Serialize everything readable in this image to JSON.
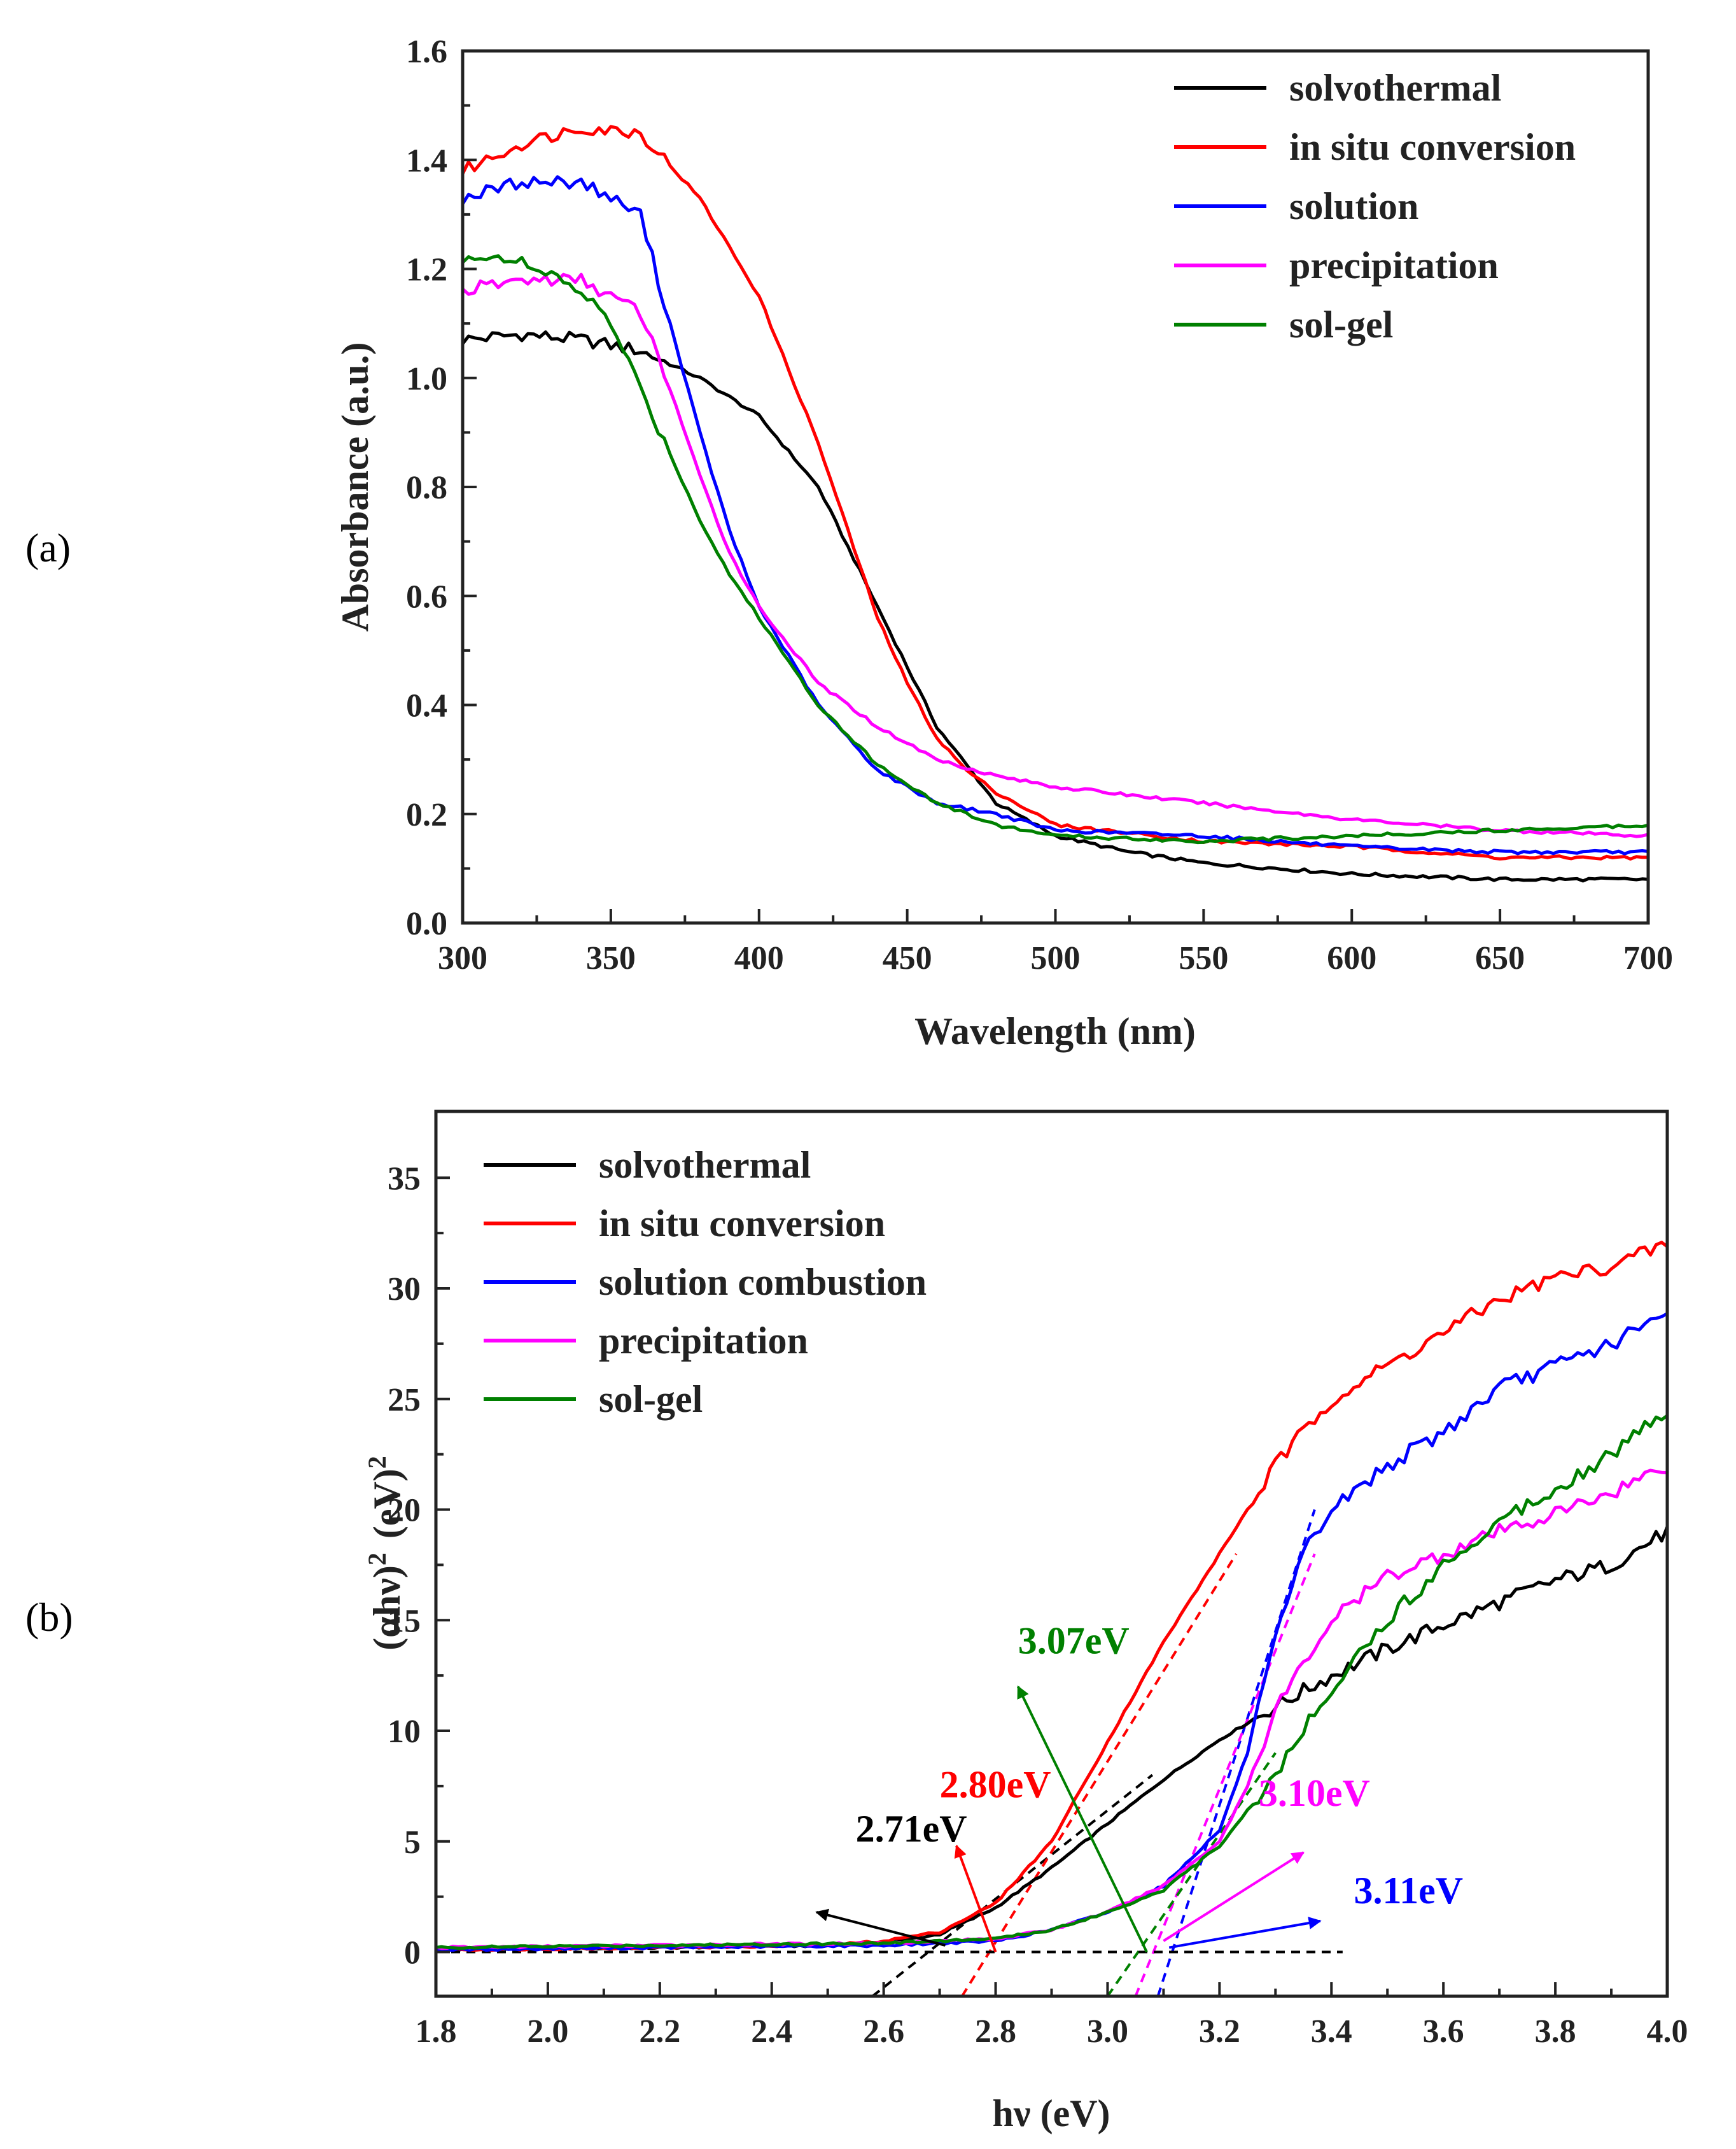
{
  "chart_data": [
    {
      "type": "line",
      "panel": "(a)",
      "title": "",
      "xlabel": "Wavelength (nm)",
      "ylabel": "Absorbance (a.u.)",
      "xlim": [
        300,
        700
      ],
      "ylim": [
        0.0,
        1.6
      ],
      "xticks": [
        "300",
        "350",
        "400",
        "450",
        "500",
        "550",
        "600",
        "650",
        "700"
      ],
      "yticks": [
        "0.0",
        "0.2",
        "0.4",
        "0.6",
        "0.8",
        "1.0",
        "1.2",
        "1.4",
        "1.6"
      ],
      "legend_position": "top-right",
      "series": [
        {
          "name": "solvothermal",
          "color": "#000000",
          "x": [
            300,
            320,
            340,
            360,
            380,
            400,
            420,
            440,
            460,
            480,
            500,
            525,
            550,
            600,
            650,
            700
          ],
          "y": [
            1.07,
            1.08,
            1.07,
            1.05,
            1.0,
            0.93,
            0.8,
            0.58,
            0.36,
            0.22,
            0.16,
            0.13,
            0.11,
            0.09,
            0.08,
            0.08
          ]
        },
        {
          "name": "in situ conversion",
          "color": "#ff0000",
          "x": [
            300,
            320,
            340,
            360,
            380,
            400,
            420,
            440,
            450,
            460,
            470,
            480,
            500,
            550,
            600,
            650,
            700
          ],
          "y": [
            1.38,
            1.43,
            1.46,
            1.45,
            1.33,
            1.15,
            0.88,
            0.56,
            0.44,
            0.34,
            0.28,
            0.24,
            0.18,
            0.15,
            0.14,
            0.12,
            0.12
          ]
        },
        {
          "name": "solution",
          "color": "#0000ff",
          "x": [
            300,
            320,
            340,
            360,
            370,
            380,
            390,
            400,
            420,
            440,
            460,
            480,
            500,
            550,
            600,
            650,
            700
          ],
          "y": [
            1.33,
            1.36,
            1.36,
            1.3,
            1.1,
            0.9,
            0.72,
            0.58,
            0.4,
            0.28,
            0.22,
            0.2,
            0.17,
            0.16,
            0.14,
            0.13,
            0.13
          ]
        },
        {
          "name": "precipitation",
          "color": "#ff00ff",
          "x": [
            300,
            320,
            340,
            360,
            370,
            380,
            390,
            400,
            420,
            440,
            460,
            480,
            500,
            550,
            600,
            650,
            700
          ],
          "y": [
            1.16,
            1.18,
            1.18,
            1.12,
            0.98,
            0.82,
            0.68,
            0.58,
            0.44,
            0.36,
            0.3,
            0.27,
            0.25,
            0.22,
            0.19,
            0.17,
            0.16
          ]
        },
        {
          "name": "sol-gel",
          "color": "#008000",
          "x": [
            300,
            310,
            320,
            340,
            350,
            360,
            370,
            380,
            390,
            400,
            420,
            440,
            460,
            480,
            500,
            550,
            600,
            650,
            700
          ],
          "y": [
            1.21,
            1.23,
            1.21,
            1.16,
            1.1,
            0.98,
            0.86,
            0.74,
            0.64,
            0.56,
            0.4,
            0.29,
            0.22,
            0.18,
            0.16,
            0.15,
            0.16,
            0.17,
            0.18
          ]
        }
      ]
    },
    {
      "type": "line",
      "panel": "(b)",
      "title": "",
      "xlabel": "hν (eV)",
      "ylabel": "(αhν)2 (eV)2",
      "ylabel_base": "(αhν)",
      "ylabel_sup1": "2",
      "ylabel_unit": "(eV)",
      "ylabel_sup2": "2",
      "xlim": [
        1.8,
        4.0
      ],
      "ylim": [
        -2,
        38
      ],
      "xticks": [
        "1.8",
        "2.0",
        "2.2",
        "2.4",
        "2.6",
        "2.8",
        "3.0",
        "3.2",
        "3.4",
        "3.6",
        "3.8",
        "4.0"
      ],
      "yticks": [
        "0",
        "5",
        "10",
        "15",
        "20",
        "25",
        "30",
        "35"
      ],
      "legend_position": "top-left",
      "series": [
        {
          "name": "solvothermal",
          "color": "#000000",
          "x": [
            1.8,
            2.2,
            2.5,
            2.6,
            2.7,
            2.8,
            2.9,
            3.0,
            3.1,
            3.2,
            3.3,
            3.4,
            3.5,
            3.6,
            3.7,
            3.8,
            3.9,
            4.0
          ],
          "y": [
            0.1,
            0.2,
            0.3,
            0.4,
            0.8,
            2.0,
            3.8,
            5.8,
            7.8,
            9.6,
            11.1,
            12.5,
            13.7,
            14.8,
            15.8,
            16.8,
            17.5,
            19.0
          ]
        },
        {
          "name": "in situ conversion",
          "color": "#ff0000",
          "x": [
            1.8,
            2.2,
            2.5,
            2.6,
            2.7,
            2.8,
            2.9,
            3.0,
            3.1,
            3.2,
            3.25,
            3.3,
            3.4,
            3.5,
            3.6,
            3.7,
            3.8,
            3.9,
            4.0
          ],
          "y": [
            0.1,
            0.2,
            0.3,
            0.5,
            0.9,
            2.2,
            5.0,
            9.5,
            14.0,
            18.0,
            20.0,
            22.0,
            25.0,
            26.5,
            28.0,
            29.5,
            30.5,
            31.0,
            32.0
          ]
        },
        {
          "name": "solution combustion",
          "color": "#0000ff",
          "x": [
            1.8,
            2.2,
            2.6,
            2.8,
            2.9,
            3.0,
            3.1,
            3.2,
            3.25,
            3.3,
            3.35,
            3.4,
            3.5,
            3.6,
            3.7,
            3.8,
            3.9,
            4.0
          ],
          "y": [
            0.1,
            0.2,
            0.3,
            0.5,
            1.0,
            1.8,
            3.0,
            5.5,
            9.0,
            14.0,
            18.0,
            20.0,
            22.0,
            23.5,
            25.5,
            26.5,
            27.5,
            28.8
          ]
        },
        {
          "name": "precipitation",
          "color": "#ff00ff",
          "x": [
            1.8,
            2.2,
            2.6,
            2.8,
            2.9,
            3.0,
            3.1,
            3.2,
            3.25,
            3.3,
            3.4,
            3.5,
            3.6,
            3.7,
            3.8,
            3.9,
            4.0
          ],
          "y": [
            0.2,
            0.3,
            0.4,
            0.6,
            1.0,
            1.8,
            3.0,
            5.0,
            7.5,
            11.0,
            15.0,
            17.0,
            18.0,
            19.0,
            19.8,
            20.8,
            22.0
          ]
        },
        {
          "name": "sol-gel",
          "color": "#008000",
          "x": [
            1.8,
            2.2,
            2.6,
            2.8,
            2.9,
            3.0,
            3.1,
            3.2,
            3.3,
            3.4,
            3.5,
            3.6,
            3.7,
            3.8,
            3.9,
            4.0
          ],
          "y": [
            0.2,
            0.3,
            0.4,
            0.6,
            1.0,
            1.8,
            2.8,
            4.8,
            8.0,
            12.0,
            15.0,
            17.5,
            19.5,
            21.0,
            22.5,
            24.5
          ]
        }
      ],
      "tangents": [
        {
          "color": "#000000",
          "x": [
            2.58,
            3.08
          ],
          "y": [
            -2,
            8
          ]
        },
        {
          "color": "#ff0000",
          "x": [
            2.74,
            3.23
          ],
          "y": [
            -2,
            18
          ]
        },
        {
          "color": "#0000ff",
          "x": [
            3.09,
            3.37
          ],
          "y": [
            -2,
            20
          ]
        },
        {
          "color": "#ff00ff",
          "x": [
            3.05,
            3.37
          ],
          "y": [
            -2,
            18
          ]
        },
        {
          "color": "#008000",
          "x": [
            3.0,
            3.3
          ],
          "y": [
            -2,
            9
          ]
        },
        {
          "color": "#000000",
          "x": [
            1.8,
            3.42
          ],
          "y": [
            0,
            0
          ]
        }
      ],
      "annotations": [
        {
          "text": "2.71eV",
          "color": "#000000",
          "label_x": 2.55,
          "label_y": 5.0,
          "from": [
            2.97,
            -0.7
          ],
          "to": [
            2.95,
            2.5
          ],
          "arrow_from": [
            2.71,
            0.3
          ],
          "arrow_to": [
            2.48,
            1.8
          ]
        },
        {
          "text": "2.80eV",
          "color": "#ff0000",
          "label_x": 2.7,
          "label_y": 7.0,
          "arrow_from": [
            2.8,
            0.0
          ],
          "arrow_to": [
            2.73,
            4.8
          ]
        },
        {
          "text": "3.07eV",
          "color": "#008000",
          "label_x": 2.84,
          "label_y": 13.5,
          "arrow_from": [
            3.07,
            0.0
          ],
          "arrow_to": [
            2.84,
            12.0
          ]
        },
        {
          "text": "3.10eV",
          "color": "#ff00ff",
          "label_x": 3.27,
          "label_y": 6.6,
          "arrow_from": [
            3.1,
            0.5
          ],
          "arrow_to": [
            3.35,
            4.5
          ]
        },
        {
          "text": "3.11eV",
          "color": "#0000ff",
          "label_x": 3.44,
          "label_y": 2.2,
          "arrow_from": [
            3.11,
            0.2
          ],
          "arrow_to": [
            3.38,
            1.4
          ]
        }
      ]
    }
  ]
}
